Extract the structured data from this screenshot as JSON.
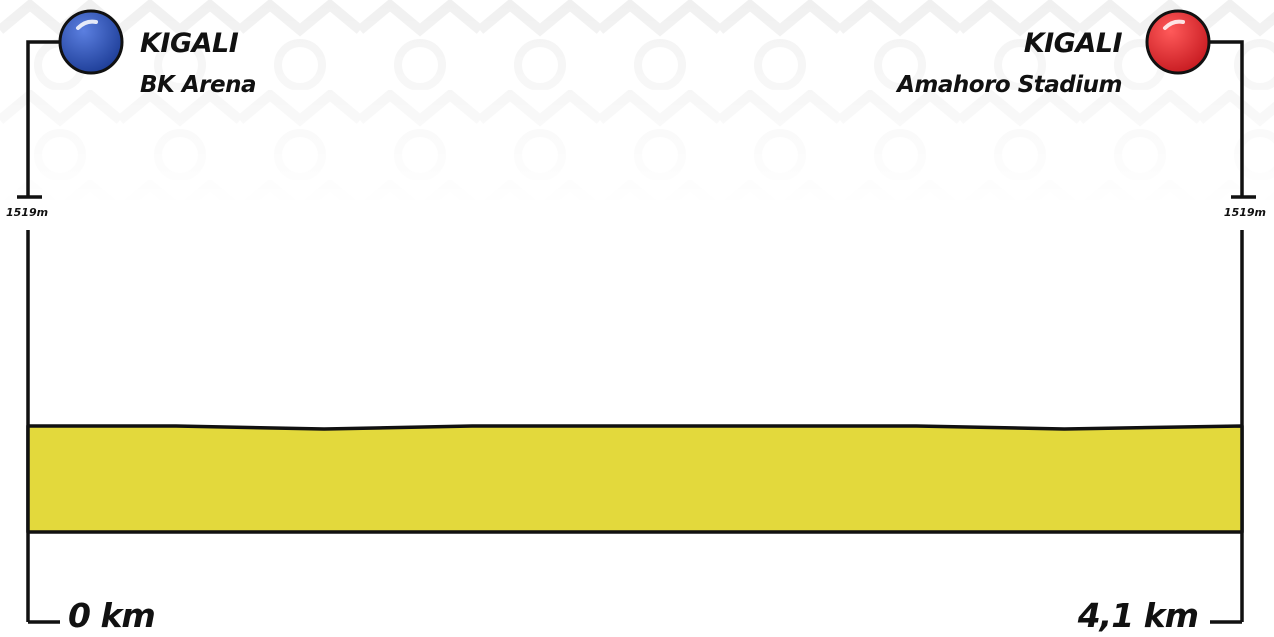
{
  "start": {
    "city": "KIGALI",
    "venue": "BK Arena",
    "elevation_label": "1519m",
    "distance_label": "0 km",
    "marker_color": "#2b4fb0"
  },
  "finish": {
    "city": "KIGALI",
    "venue": "Amahoro Stadium",
    "elevation_label": "1519m",
    "distance_label": "4,1 km",
    "marker_color": "#e0282e"
  },
  "profile_color": "#e3d93c",
  "chart_data": {
    "type": "area",
    "xlabel": "",
    "ylabel": "",
    "x": [
      0,
      0.5,
      1.0,
      1.5,
      2.0,
      2.5,
      3.0,
      3.5,
      4.1
    ],
    "y": [
      1519,
      1519,
      1518,
      1519,
      1519,
      1519,
      1519,
      1518,
      1519
    ],
    "xlim": [
      0,
      4.1
    ],
    "ylim": [
      1500,
      1540
    ]
  }
}
